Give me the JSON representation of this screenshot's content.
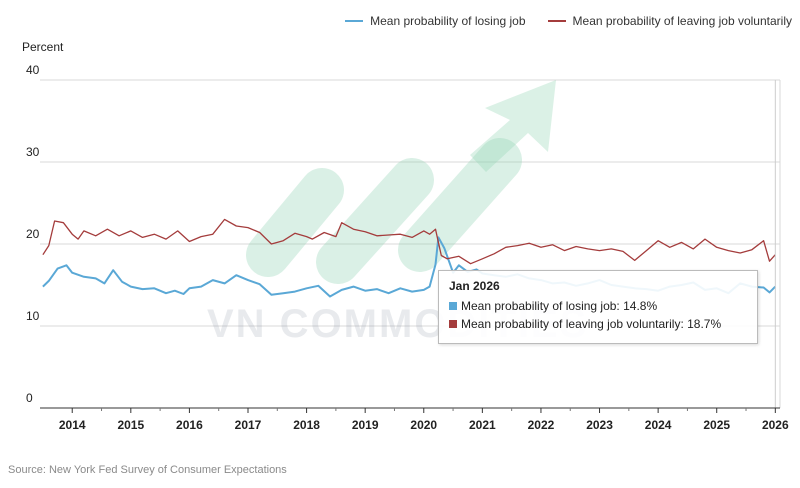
{
  "legend": {
    "series1": "Mean probability of losing job",
    "series2": "Mean probability of leaving job voluntarily"
  },
  "colors": {
    "series1": "#5aa8d6",
    "series2": "#a43c3c",
    "grid": "#d8d8d8",
    "axis": "#333333"
  },
  "y_axis_title": "Percent",
  "source": "Source: New York Fed Survey of Consumer Expectations",
  "watermark": "VN COMMODITIES",
  "tooltip": {
    "title": "Jan 2026",
    "line1": "Mean probability of losing job: 14.8%",
    "line2": "Mean probability of leaving job voluntarily: 18.7%"
  },
  "chart_data": {
    "type": "line",
    "title": "",
    "xlabel": "",
    "ylabel": "Percent",
    "ylim": [
      0,
      40
    ],
    "yticks": [
      0,
      10,
      20,
      30,
      40
    ],
    "xticks": [
      "2014",
      "2015",
      "2016",
      "2017",
      "2018",
      "2019",
      "2020",
      "2021",
      "2022",
      "2023",
      "2024",
      "2025",
      "2026"
    ],
    "xlim": [
      2013.45,
      2026.08
    ],
    "grid": true,
    "legend_position": "top-right",
    "series": [
      {
        "name": "Mean probability of losing job",
        "x": [
          2013.5,
          2013.6,
          2013.75,
          2013.9,
          2014.0,
          2014.2,
          2014.4,
          2014.55,
          2014.7,
          2014.85,
          2015.0,
          2015.2,
          2015.4,
          2015.6,
          2015.75,
          2015.9,
          2016.0,
          2016.2,
          2016.4,
          2016.6,
          2016.8,
          2017.0,
          2017.2,
          2017.4,
          2017.6,
          2017.8,
          2018.0,
          2018.2,
          2018.4,
          2018.6,
          2018.8,
          2019.0,
          2019.2,
          2019.4,
          2019.6,
          2019.8,
          2020.0,
          2020.1,
          2020.2,
          2020.25,
          2020.35,
          2020.5,
          2020.6,
          2020.75,
          2020.9,
          2021.0,
          2021.2,
          2021.4,
          2021.6,
          2021.8,
          2022.0,
          2022.2,
          2022.4,
          2022.6,
          2022.8,
          2023.0,
          2023.2,
          2023.4,
          2023.6,
          2023.8,
          2024.0,
          2024.2,
          2024.4,
          2024.6,
          2024.8,
          2025.0,
          2025.2,
          2025.4,
          2025.6,
          2025.8,
          2025.9,
          2026.0
        ],
        "values": [
          14.8,
          15.5,
          17.0,
          17.4,
          16.5,
          16.0,
          15.8,
          15.2,
          16.8,
          15.4,
          14.8,
          14.5,
          14.6,
          14.0,
          14.3,
          13.9,
          14.6,
          14.8,
          15.6,
          15.2,
          16.2,
          15.6,
          15.1,
          13.8,
          14.0,
          14.2,
          14.6,
          14.9,
          13.6,
          14.4,
          14.8,
          14.3,
          14.5,
          14.0,
          14.6,
          14.2,
          14.4,
          14.8,
          17.5,
          20.8,
          19.5,
          16.5,
          17.4,
          16.6,
          16.9,
          16.4,
          16.2,
          16.0,
          16.3,
          15.8,
          15.6,
          15.2,
          15.3,
          14.9,
          15.2,
          15.6,
          15.0,
          14.8,
          14.6,
          14.5,
          14.3,
          14.8,
          15.0,
          15.3,
          14.4,
          14.6,
          14.0,
          15.2,
          14.8,
          14.7,
          14.1,
          14.8
        ]
      },
      {
        "name": "Mean probability of leaving job voluntarily",
        "x": [
          2013.5,
          2013.6,
          2013.7,
          2013.85,
          2014.0,
          2014.1,
          2014.2,
          2014.4,
          2014.6,
          2014.8,
          2015.0,
          2015.2,
          2015.4,
          2015.6,
          2015.8,
          2016.0,
          2016.2,
          2016.4,
          2016.6,
          2016.8,
          2017.0,
          2017.2,
          2017.4,
          2017.6,
          2017.8,
          2018.0,
          2018.1,
          2018.3,
          2018.5,
          2018.6,
          2018.8,
          2019.0,
          2019.2,
          2019.4,
          2019.6,
          2019.8,
          2020.0,
          2020.1,
          2020.2,
          2020.3,
          2020.4,
          2020.6,
          2020.8,
          2021.0,
          2021.2,
          2021.4,
          2021.6,
          2021.8,
          2022.0,
          2022.2,
          2022.4,
          2022.6,
          2022.8,
          2023.0,
          2023.2,
          2023.4,
          2023.6,
          2023.8,
          2024.0,
          2024.2,
          2024.4,
          2024.6,
          2024.8,
          2025.0,
          2025.2,
          2025.4,
          2025.6,
          2025.8,
          2025.9,
          2026.0
        ],
        "values": [
          18.7,
          19.8,
          22.8,
          22.6,
          21.2,
          20.6,
          21.6,
          21.0,
          21.8,
          21.0,
          21.6,
          20.8,
          21.2,
          20.6,
          21.6,
          20.3,
          20.9,
          21.2,
          23.0,
          22.2,
          22.0,
          21.4,
          20.0,
          20.4,
          21.3,
          20.9,
          20.6,
          21.4,
          20.9,
          22.6,
          21.8,
          21.5,
          21.0,
          21.1,
          21.2,
          20.8,
          21.6,
          21.2,
          21.8,
          18.6,
          18.2,
          18.5,
          17.6,
          18.2,
          18.8,
          19.6,
          19.8,
          20.1,
          19.6,
          19.9,
          19.2,
          19.7,
          19.4,
          19.2,
          19.4,
          19.1,
          18.0,
          19.2,
          20.4,
          19.6,
          20.2,
          19.4,
          20.6,
          19.6,
          19.2,
          18.9,
          19.3,
          20.4,
          17.9,
          18.7
        ]
      }
    ]
  }
}
